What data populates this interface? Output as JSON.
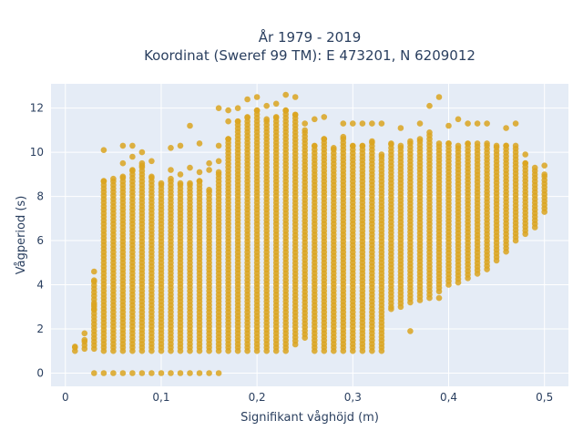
{
  "chart_data": {
    "type": "scatter",
    "title_line1": "År 1979 - 2019",
    "title_line2": "Koordinat (Sweref 99 TM): E 473201, N 6209012",
    "xlabel": "Signifikant våghöjd (m)",
    "ylabel": "Vågperiod (s)",
    "xlim": [
      -0.015,
      0.525
    ],
    "ylim": [
      -0.6,
      13.1
    ],
    "x_ticks": [
      0,
      0.1,
      0.2,
      0.3,
      0.4,
      0.5
    ],
    "x_tick_labels": [
      "0",
      "0,1",
      "0,2",
      "0,3",
      "0,4",
      "0,5"
    ],
    "y_ticks": [
      0,
      2,
      4,
      6,
      8,
      10,
      12
    ],
    "y_tick_labels": [
      "0",
      "2",
      "4",
      "6",
      "8",
      "10",
      "12"
    ],
    "grid": true,
    "marker_color": "#daa520",
    "background_color": "#e5ecf6",
    "columns": [
      {
        "x": 0.01,
        "ymin": 1.0,
        "ymax": 1.2,
        "extras": []
      },
      {
        "x": 0.02,
        "ymin": 1.1,
        "ymax": 1.5,
        "extras": [
          1.8
        ]
      },
      {
        "x": 0.03,
        "ymin": 1.1,
        "ymax": 4.2,
        "extras": [
          0,
          4.6,
          3.1,
          2.9
        ]
      },
      {
        "x": 0.04,
        "ymin": 1.0,
        "ymax": 8.7,
        "extras": [
          0,
          10.1
        ]
      },
      {
        "x": 0.05,
        "ymin": 1.0,
        "ymax": 8.8,
        "extras": [
          0
        ]
      },
      {
        "x": 0.06,
        "ymin": 1.0,
        "ymax": 8.9,
        "extras": [
          0,
          10.3,
          9.5
        ]
      },
      {
        "x": 0.07,
        "ymin": 1.0,
        "ymax": 9.2,
        "extras": [
          0,
          10.3,
          9.8
        ]
      },
      {
        "x": 0.08,
        "ymin": 1.0,
        "ymax": 9.4,
        "extras": [
          0,
          10.0,
          9.5
        ]
      },
      {
        "x": 0.09,
        "ymin": 1.0,
        "ymax": 8.9,
        "extras": [
          0,
          9.6
        ]
      },
      {
        "x": 0.1,
        "ymin": 1.0,
        "ymax": 8.6,
        "extras": [
          0
        ]
      },
      {
        "x": 0.11,
        "ymin": 1.0,
        "ymax": 8.8,
        "extras": [
          0,
          10.2,
          9.2
        ]
      },
      {
        "x": 0.12,
        "ymin": 1.0,
        "ymax": 8.6,
        "extras": [
          0,
          10.3,
          9.0
        ]
      },
      {
        "x": 0.13,
        "ymin": 1.0,
        "ymax": 8.6,
        "extras": [
          0,
          11.2,
          9.3
        ]
      },
      {
        "x": 0.14,
        "ymin": 1.0,
        "ymax": 8.7,
        "extras": [
          0,
          10.4,
          9.1
        ]
      },
      {
        "x": 0.15,
        "ymin": 1.0,
        "ymax": 8.3,
        "extras": [
          0,
          9.5,
          9.2
        ]
      },
      {
        "x": 0.16,
        "ymin": 1.0,
        "ymax": 9.1,
        "extras": [
          0,
          12.0,
          10.3,
          9.6
        ]
      },
      {
        "x": 0.17,
        "ymin": 1.0,
        "ymax": 10.6,
        "extras": [
          11.9,
          11.4
        ]
      },
      {
        "x": 0.18,
        "ymin": 1.0,
        "ymax": 11.4,
        "extras": [
          12.0
        ]
      },
      {
        "x": 0.19,
        "ymin": 1.0,
        "ymax": 11.6,
        "extras": [
          12.4
        ]
      },
      {
        "x": 0.2,
        "ymin": 1.0,
        "ymax": 11.9,
        "extras": [
          12.5
        ]
      },
      {
        "x": 0.21,
        "ymin": 1.0,
        "ymax": 11.5,
        "extras": [
          12.1
        ]
      },
      {
        "x": 0.22,
        "ymin": 1.0,
        "ymax": 11.6,
        "extras": [
          12.2
        ]
      },
      {
        "x": 0.23,
        "ymin": 1.0,
        "ymax": 11.9,
        "extras": [
          12.6
        ]
      },
      {
        "x": 0.24,
        "ymin": 1.3,
        "ymax": 11.7,
        "extras": [
          12.5
        ]
      },
      {
        "x": 0.25,
        "ymin": 1.6,
        "ymax": 11.0,
        "extras": [
          11.3
        ]
      },
      {
        "x": 0.26,
        "ymin": 1.0,
        "ymax": 10.3,
        "extras": [
          11.5
        ]
      },
      {
        "x": 0.27,
        "ymin": 1.0,
        "ymax": 10.6,
        "extras": [
          11.6
        ]
      },
      {
        "x": 0.28,
        "ymin": 1.0,
        "ymax": 10.2,
        "extras": []
      },
      {
        "x": 0.29,
        "ymin": 1.0,
        "ymax": 10.7,
        "extras": [
          11.3
        ]
      },
      {
        "x": 0.3,
        "ymin": 1.0,
        "ymax": 10.3,
        "extras": [
          11.3
        ]
      },
      {
        "x": 0.31,
        "ymin": 1.0,
        "ymax": 10.3,
        "extras": [
          11.3
        ]
      },
      {
        "x": 0.32,
        "ymin": 1.0,
        "ymax": 10.5,
        "extras": [
          11.3
        ]
      },
      {
        "x": 0.33,
        "ymin": 1.0,
        "ymax": 9.9,
        "extras": [
          11.3
        ]
      },
      {
        "x": 0.34,
        "ymin": 3.0,
        "ymax": 10.4,
        "extras": [
          2.9
        ]
      },
      {
        "x": 0.35,
        "ymin": 3.0,
        "ymax": 10.3,
        "extras": [
          11.1
        ]
      },
      {
        "x": 0.36,
        "ymin": 3.2,
        "ymax": 10.5,
        "extras": [
          1.9
        ]
      },
      {
        "x": 0.37,
        "ymin": 3.3,
        "ymax": 10.6,
        "extras": [
          11.3
        ]
      },
      {
        "x": 0.38,
        "ymin": 3.4,
        "ymax": 10.9,
        "extras": [
          12.1
        ]
      },
      {
        "x": 0.39,
        "ymin": 3.7,
        "ymax": 10.4,
        "extras": [
          12.5,
          3.4
        ]
      },
      {
        "x": 0.4,
        "ymin": 4.0,
        "ymax": 10.4,
        "extras": [
          11.2
        ]
      },
      {
        "x": 0.41,
        "ymin": 4.1,
        "ymax": 10.3,
        "extras": [
          11.5
        ]
      },
      {
        "x": 0.42,
        "ymin": 4.3,
        "ymax": 10.4,
        "extras": [
          11.3
        ]
      },
      {
        "x": 0.43,
        "ymin": 4.5,
        "ymax": 10.4,
        "extras": [
          11.3
        ]
      },
      {
        "x": 0.44,
        "ymin": 4.7,
        "ymax": 10.4,
        "extras": [
          11.3
        ]
      },
      {
        "x": 0.45,
        "ymin": 5.1,
        "ymax": 10.3,
        "extras": []
      },
      {
        "x": 0.46,
        "ymin": 5.5,
        "ymax": 10.3,
        "extras": [
          11.1
        ]
      },
      {
        "x": 0.47,
        "ymin": 6.0,
        "ymax": 10.3,
        "extras": [
          11.3
        ]
      },
      {
        "x": 0.48,
        "ymin": 6.3,
        "ymax": 9.5,
        "extras": [
          9.9
        ]
      },
      {
        "x": 0.49,
        "ymin": 6.6,
        "ymax": 9.3,
        "extras": []
      },
      {
        "x": 0.5,
        "ymin": 7.3,
        "ymax": 9.0,
        "extras": [
          9.4
        ]
      }
    ]
  }
}
